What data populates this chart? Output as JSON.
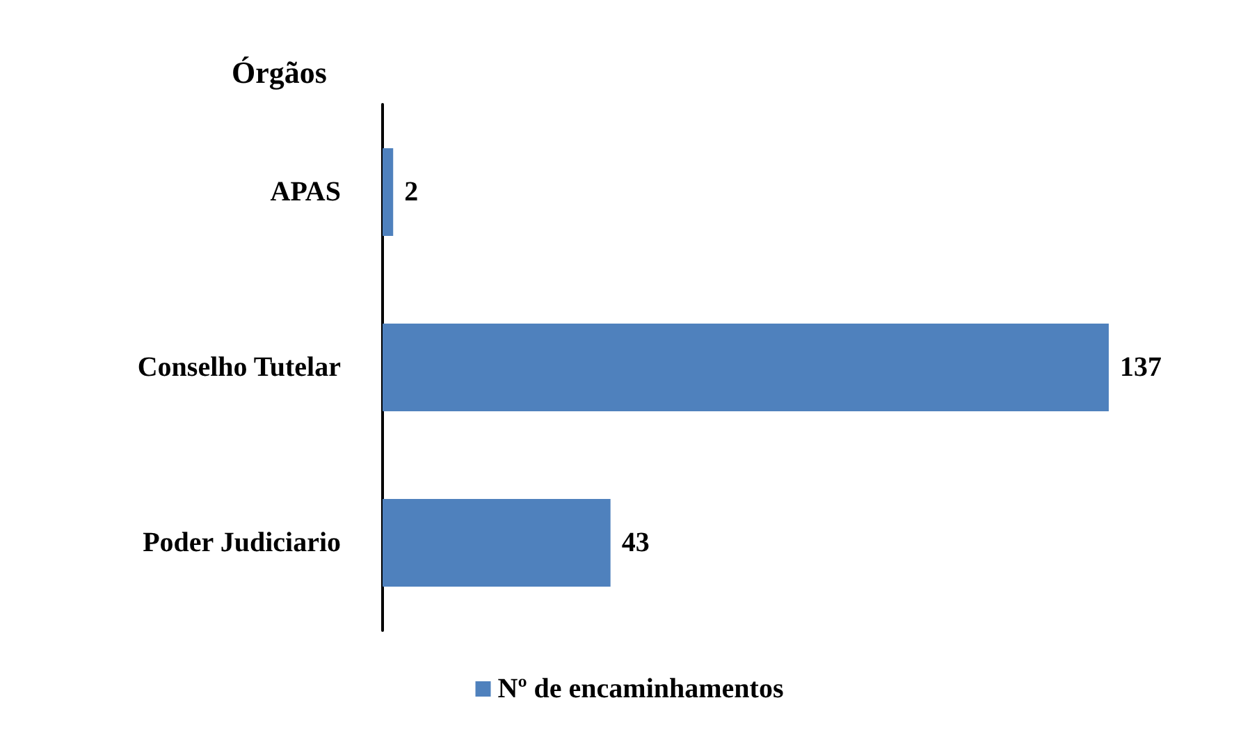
{
  "chart_data": {
    "type": "bar",
    "orientation": "horizontal",
    "ylabel": "Órgãos",
    "categories": [
      "APAS",
      "Conselho Tutelar",
      "Poder Judiciario"
    ],
    "series": [
      {
        "name": "Nº de encaminhamentos",
        "color": "#4f81bd",
        "values": [
          2,
          137,
          43
        ]
      }
    ],
    "data_labels": true,
    "legend": "bottom"
  }
}
